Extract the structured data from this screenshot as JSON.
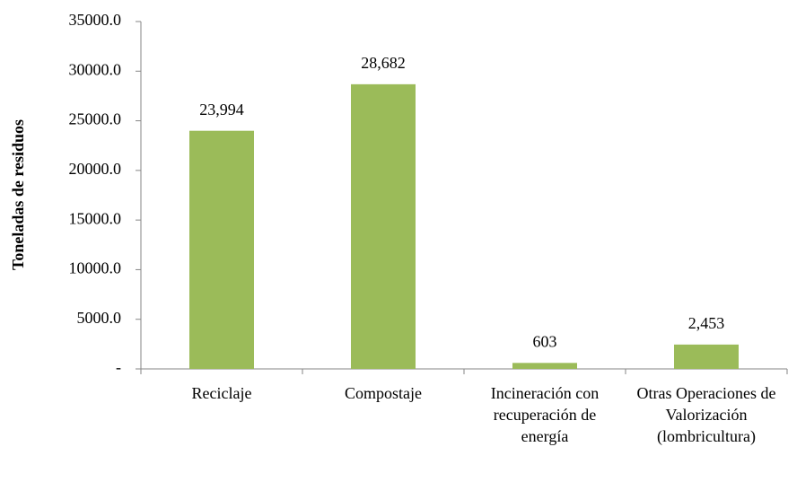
{
  "chart_data": {
    "type": "bar",
    "y_label": "Toneladas de residuos",
    "categories": [
      "Reciclaje",
      "Compostaje",
      "Incineración con recuperación de energía",
      "Otras Operaciones de Valorización (lombricultura)"
    ],
    "values": [
      23994,
      28682,
      603,
      2453
    ],
    "value_labels": [
      "23,994",
      "28,682",
      "603",
      "2,453"
    ],
    "color": "#9bbb59",
    "ylim": [
      0,
      35000
    ],
    "yticks": [
      {
        "value": 0,
        "label": "-"
      },
      {
        "value": 5000,
        "label": "5000.0"
      },
      {
        "value": 10000,
        "label": "10000.0"
      },
      {
        "value": 15000,
        "label": "15000.0"
      },
      {
        "value": 20000,
        "label": "20000.0"
      },
      {
        "value": 25000,
        "label": "25000.0"
      },
      {
        "value": 30000,
        "label": "30000.0"
      },
      {
        "value": 35000,
        "label": "35000.0"
      }
    ],
    "grid": false
  }
}
